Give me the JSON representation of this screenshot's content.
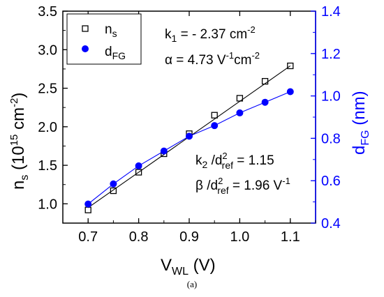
{
  "caption": "(a)",
  "chart_data": {
    "type": "scatter",
    "colors": {
      "left_axis": "#000000",
      "right_axis": "#0000ff",
      "series2": "#0000ff"
    },
    "x": [
      0.7,
      0.75,
      0.8,
      0.85,
      0.9,
      0.95,
      1.0,
      1.05,
      1.1
    ],
    "xlim": [
      0.65,
      1.15
    ],
    "xticks": [
      "0.7",
      "0.8",
      "0.9",
      "1.0",
      "1.1"
    ],
    "ylim_left": [
      0.75,
      3.5
    ],
    "yticks_left": [
      "1.0",
      "1.5",
      "2.0",
      "2.5",
      "3.0",
      "3.5"
    ],
    "ylim_right": [
      0.4,
      1.4
    ],
    "yticks_right": [
      "0.4",
      "0.6",
      "0.8",
      "1.0",
      "1.2",
      "1.4"
    ],
    "xlabel": {
      "main": "V",
      "sub": "WL",
      "rest": " (V)"
    },
    "ylabel_left": {
      "main": "n",
      "sub": "s",
      "mid": " (10",
      "sup": "15",
      "mid2": " cm",
      "sup2": "-2",
      "end": ")"
    },
    "ylabel_right": {
      "main": "d",
      "sub": "FG",
      "rest": " (nm)"
    },
    "series": [
      {
        "name": "n_s",
        "legend": {
          "main": "n",
          "sub": "s"
        },
        "axis": "left",
        "marker": "open-square",
        "color": "#000000",
        "values": [
          0.92,
          1.17,
          1.41,
          1.65,
          1.91,
          2.15,
          2.37,
          2.59,
          2.79
        ],
        "fit": [
          0.95,
          1.18,
          1.41,
          1.64,
          1.87,
          2.1,
          2.33,
          2.56,
          2.79
        ]
      },
      {
        "name": "d_FG",
        "legend": {
          "main": "d",
          "sub": "FG"
        },
        "axis": "right",
        "marker": "filled-circle",
        "color": "#0000ff",
        "values": [
          0.49,
          0.585,
          0.67,
          0.74,
          0.81,
          0.86,
          0.92,
          0.97,
          1.02
        ]
      }
    ],
    "annotations": {
      "k1": {
        "a": "k",
        "a_sub": "1",
        "b": " = - 2.37 cm",
        "b_sup": "-2"
      },
      "alpha": {
        "a": "α = 4.73 V",
        "a_sup": "-1",
        "b": "cm",
        "b_sup": "-2"
      },
      "k2": {
        "a": "k",
        "a_sub": "2",
        "b": " /d",
        "b_sup": "2",
        "b_sub": "ref",
        "c": " = 1.15"
      },
      "beta": {
        "a": "β /d",
        "a_sup": "2",
        "a_sub": "ref",
        "c": " = 1.96 V",
        "c_sup": "-1"
      }
    }
  }
}
